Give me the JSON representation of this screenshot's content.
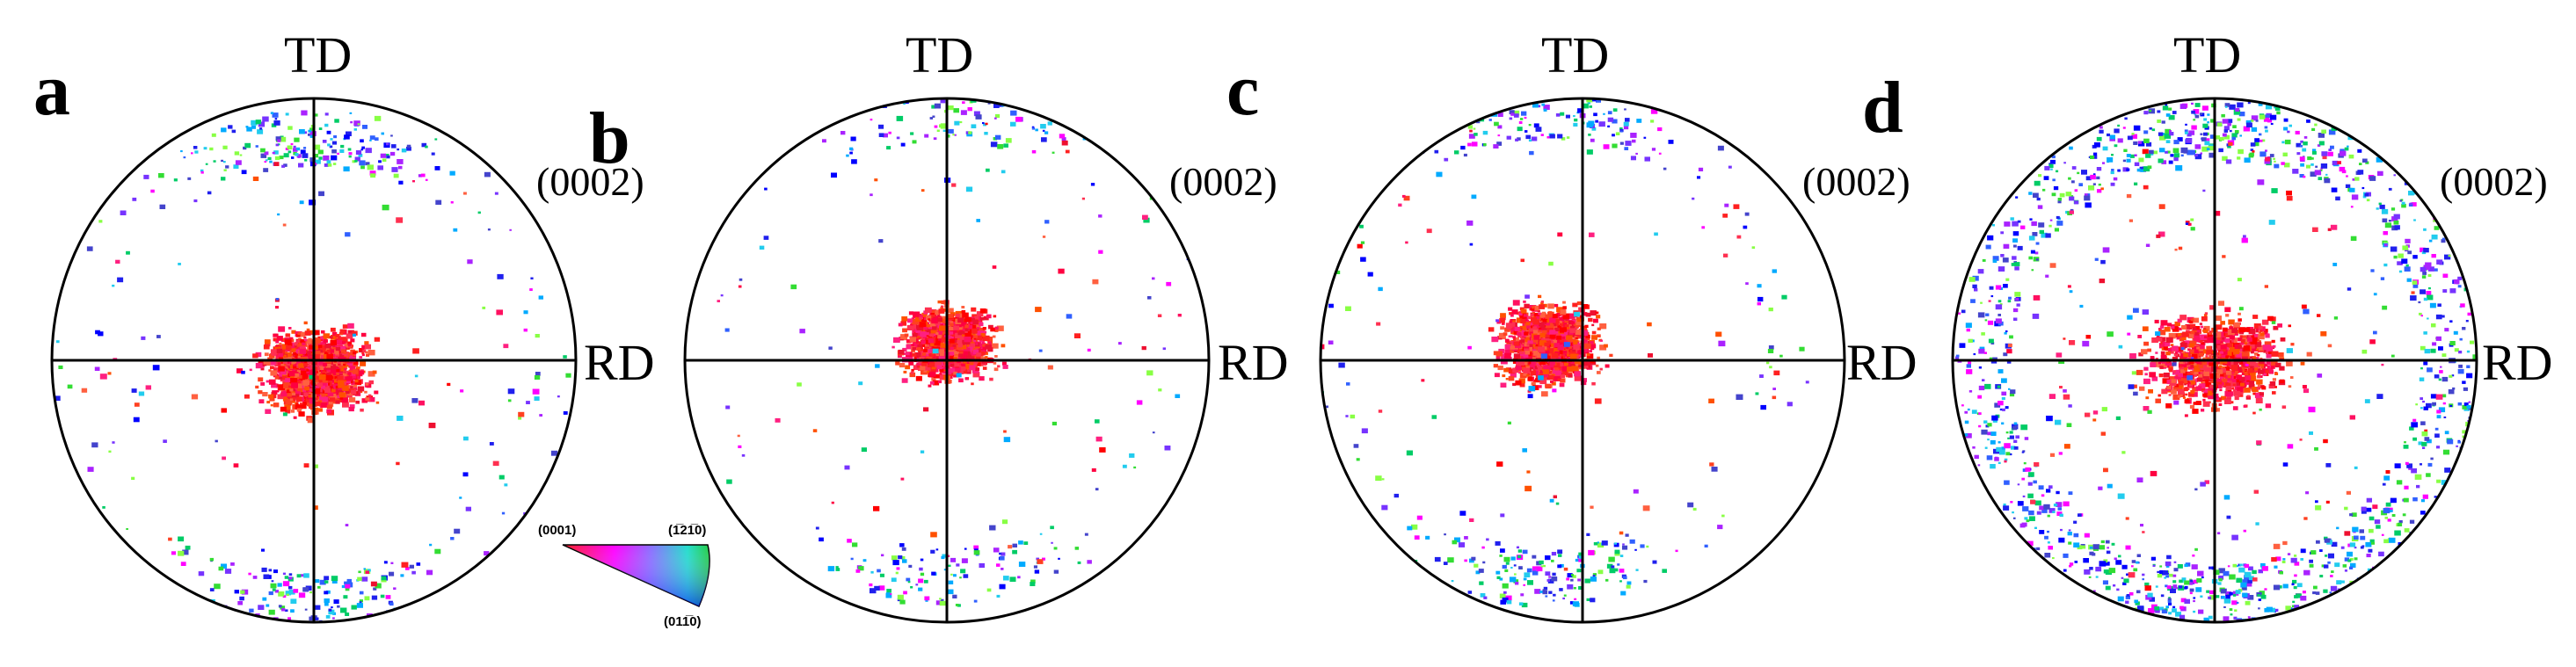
{
  "figure": {
    "description_labels": {
      "td": "TD",
      "rd": "RD",
      "plane": "(0002)"
    },
    "panels": [
      {
        "letter": "a",
        "td_label": "TD",
        "rd_label": "RD",
        "plane_label": "(0002)"
      },
      {
        "letter": "b",
        "td_label": "TD",
        "rd_label": "RD",
        "plane_label": "(0002)"
      },
      {
        "letter": "c",
        "td_label": "TD",
        "rd_label": "RD",
        "plane_label": "(0002)"
      },
      {
        "letter": "d",
        "td_label": "TD",
        "rd_label": "RD",
        "plane_label": "(0002)"
      }
    ],
    "color_key": {
      "corner_0001": "(0001)",
      "corner_12_10": "(1̅21̅0)",
      "corner_01_10": "(011̅0)",
      "colors": {
        "basal": "#ff0000",
        "a_axis": "#00ff00",
        "prism": "#0000ff"
      }
    }
  }
}
